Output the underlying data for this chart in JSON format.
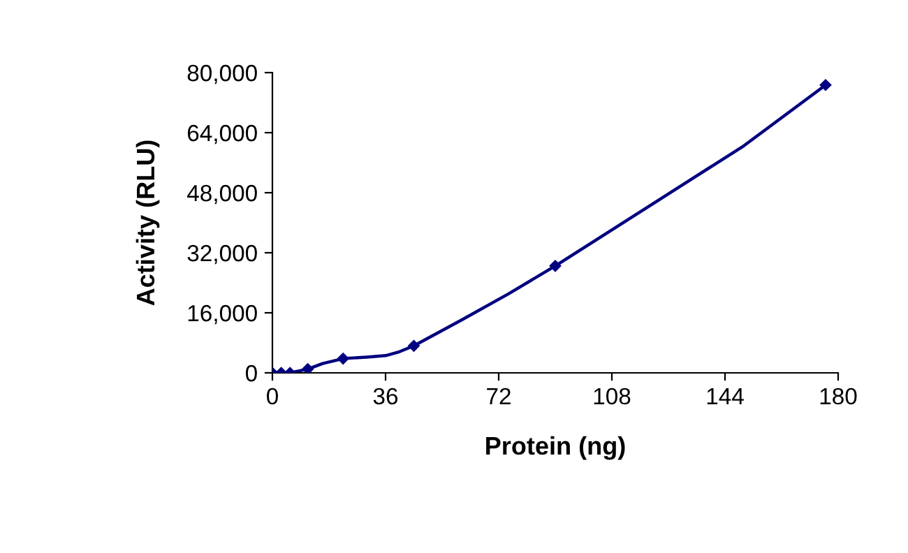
{
  "chart_data": {
    "type": "line",
    "xlabel": "Protein (ng)",
    "ylabel": "Activity (RLU)",
    "x": [
      0,
      2.8,
      5.6,
      11.25,
      22.5,
      45,
      90,
      176
    ],
    "series": [
      {
        "color": "#000080",
        "x": [
          0,
          2.8,
          5.6,
          11.25,
          16,
          22.5,
          30,
          36,
          40,
          45,
          60,
          75,
          90,
          120,
          150,
          176
        ],
        "values": [
          0,
          0,
          0,
          1000,
          2500,
          3800,
          4200,
          4600,
          5500,
          7200,
          14000,
          21000,
          28500,
          44500,
          60500,
          76700
        ],
        "marker": "none"
      },
      {
        "type": "scatter",
        "color": "#000080",
        "values": [
          0,
          0,
          0,
          1000,
          3800,
          7200,
          28500,
          76700
        ]
      }
    ],
    "xlim": [
      0,
      180
    ],
    "xticks": [
      0,
      36,
      72,
      108,
      144,
      180
    ],
    "ylim": [
      0,
      80000
    ],
    "yticks": [
      {
        "value": 0,
        "label": "0"
      },
      {
        "value": 16000,
        "label": "16,000"
      },
      {
        "value": 32000,
        "label": "32,000"
      },
      {
        "value": 48000,
        "label": "48,000"
      },
      {
        "value": 64000,
        "label": "64,000"
      },
      {
        "value": 80000,
        "label": "80,000"
      }
    ],
    "marker": "diamond",
    "line_style": "solid",
    "grid": false,
    "legend": false
  }
}
